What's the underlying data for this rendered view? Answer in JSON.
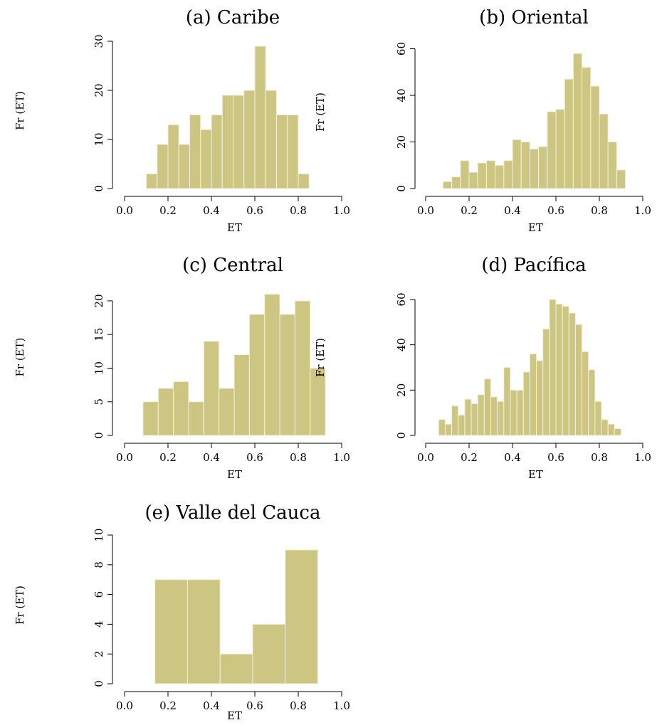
{
  "colors": {
    "bar": "#cdc683",
    "bar_edge": "#f2f0dc",
    "axis": "#000000"
  },
  "chart_data": [
    {
      "type": "bar",
      "title": "(a) Caribe",
      "xlabel": "ET",
      "ylabel": "Fr (ET)",
      "xlim": [
        0,
        1
      ],
      "xticks": [
        0.0,
        0.2,
        0.4,
        0.6,
        0.8,
        1.0
      ],
      "xtick_labels": [
        "0.0",
        "0.2",
        "0.4",
        "0.6",
        "0.8",
        "1.0"
      ],
      "ylim": [
        0,
        30
      ],
      "yticks": [
        0,
        10,
        20,
        30
      ],
      "ytick_labels": [
        "0",
        "10",
        "20",
        "30"
      ],
      "bins": {
        "start": 0.1,
        "width": 0.05
      },
      "values": [
        3,
        9,
        13,
        9,
        15,
        12,
        15,
        19,
        19,
        20,
        29,
        20,
        15,
        15,
        3
      ]
    },
    {
      "type": "bar",
      "title": "(b) Oriental",
      "xlabel": "ET",
      "ylabel": "Fr (ET)",
      "xlim": [
        0,
        1
      ],
      "xticks": [
        0.0,
        0.2,
        0.4,
        0.6,
        0.8,
        1.0
      ],
      "xtick_labels": [
        "0.0",
        "0.2",
        "0.4",
        "0.6",
        "0.8",
        "1.0"
      ],
      "ylim": [
        0,
        62
      ],
      "yticks": [
        0,
        20,
        40,
        60
      ],
      "ytick_labels": [
        "0",
        "20",
        "40",
        "60"
      ],
      "bins": {
        "start": 0.08,
        "width": 0.04
      },
      "values": [
        3,
        5,
        12,
        7,
        11,
        12,
        10,
        12,
        21,
        20,
        17,
        18,
        33,
        34,
        47,
        58,
        52,
        44,
        32,
        20,
        8
      ]
    },
    {
      "type": "bar",
      "title": "(c) Central",
      "xlabel": "ET",
      "ylabel": "Fr (ET)",
      "xlim": [
        0,
        1
      ],
      "xticks": [
        0.0,
        0.2,
        0.4,
        0.6,
        0.8,
        1.0
      ],
      "xtick_labels": [
        "0.0",
        "0.2",
        "0.4",
        "0.6",
        "0.8",
        "1.0"
      ],
      "ylim": [
        0,
        22
      ],
      "yticks": [
        0,
        5,
        10,
        15,
        20
      ],
      "ytick_labels": [
        "0",
        "5",
        "10",
        "15",
        "20"
      ],
      "bins": {
        "start": 0.085,
        "width": 0.07
      },
      "values": [
        5,
        7,
        8,
        5,
        14,
        7,
        12,
        18,
        21,
        18,
        20,
        10
      ]
    },
    {
      "type": "bar",
      "title": "(d) Pacífica",
      "xlabel": "ET",
      "ylabel": "Fr (ET)",
      "xlim": [
        0,
        1
      ],
      "xticks": [
        0.0,
        0.2,
        0.4,
        0.6,
        0.8,
        1.0
      ],
      "xtick_labels": [
        "0.0",
        "0.2",
        "0.4",
        "0.6",
        "0.8",
        "1.0"
      ],
      "ylim": [
        0,
        65
      ],
      "yticks": [
        0,
        20,
        40,
        60
      ],
      "ytick_labels": [
        "0",
        "20",
        "40",
        "60"
      ],
      "bins": {
        "start": 0.06,
        "width": 0.03
      },
      "values": [
        7,
        5,
        13,
        9,
        16,
        14,
        18,
        25,
        17,
        15,
        30,
        20,
        20,
        28,
        36,
        33,
        47,
        60,
        58,
        57,
        54,
        49,
        37,
        29,
        15,
        7,
        5,
        3
      ]
    },
    {
      "type": "bar",
      "title": "(e) Valle del Cauca",
      "xlabel": "ET",
      "ylabel": "Fr (ET)",
      "xlim": [
        0,
        1
      ],
      "xticks": [
        0.0,
        0.2,
        0.4,
        0.6,
        0.8,
        1.0
      ],
      "xtick_labels": [
        "0.0",
        "0.2",
        "0.4",
        "0.6",
        "0.8",
        "1.0"
      ],
      "ylim": [
        0,
        10
      ],
      "yticks": [
        0,
        2,
        4,
        6,
        8,
        10
      ],
      "ytick_labels": [
        "0",
        "2",
        "4",
        "6",
        "8",
        "10"
      ],
      "bins": {
        "start": 0.14,
        "width": 0.15
      },
      "values": [
        7,
        7,
        2,
        4,
        9
      ]
    }
  ]
}
